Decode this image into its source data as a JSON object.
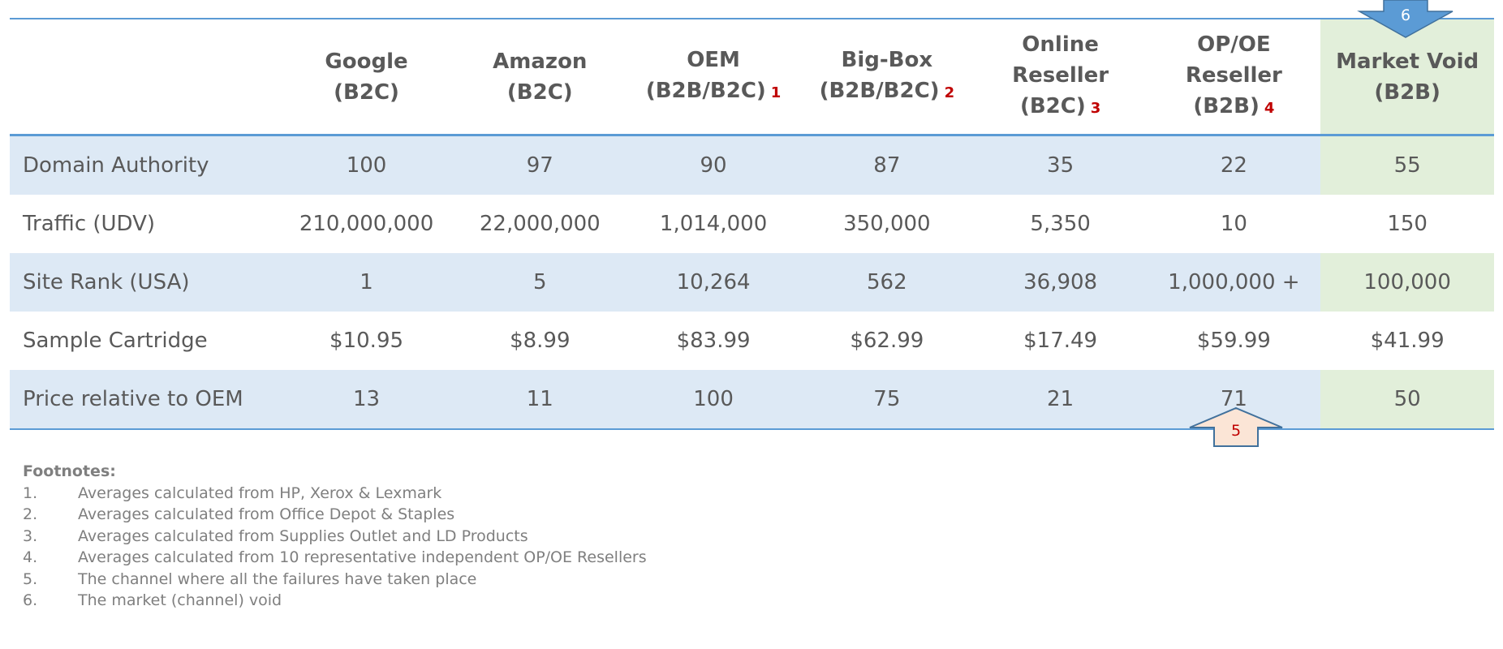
{
  "columns": [
    {
      "line1": "Google",
      "line2": "(B2C)",
      "note": ""
    },
    {
      "line1": "Amazon",
      "line2": "(B2C)",
      "note": ""
    },
    {
      "line1": "OEM",
      "line2": "(B2B/B2C)",
      "note": "1"
    },
    {
      "line1": "Big-Box",
      "line2": "(B2B/B2C)",
      "note": "2"
    },
    {
      "line1": "Online Reseller",
      "line2": "(B2C)",
      "note": "3"
    },
    {
      "line1": "OP/OE Reseller",
      "line2": "(B2B)",
      "note": "4"
    },
    {
      "line1": "Market Void",
      "line2": "(B2B)",
      "note": ""
    }
  ],
  "rows": [
    {
      "label": "Domain Authority",
      "values": [
        "100",
        "97",
        "90",
        "87",
        "35",
        "22",
        "55"
      ]
    },
    {
      "label": "Traffic (UDV)",
      "values": [
        "210,000,000",
        "22,000,000",
        "1,014,000",
        "350,000",
        "5,350",
        "10",
        "150"
      ]
    },
    {
      "label": "Site Rank (USA)",
      "values": [
        "1",
        "5",
        "10,264",
        "562",
        "36,908",
        "1,000,000 +",
        "100,000"
      ]
    },
    {
      "label": "Sample Cartridge",
      "values": [
        "$10.95",
        "$8.99",
        "$83.99",
        "$62.99",
        "$17.49",
        "$59.99",
        "$41.99"
      ]
    },
    {
      "label": "Price relative to OEM",
      "values": [
        "13",
        "11",
        "100",
        "75",
        "21",
        "71",
        "50"
      ]
    }
  ],
  "callouts": {
    "down": "6",
    "up": "5"
  },
  "footnotes": {
    "title": "Footnotes:",
    "items": [
      {
        "num": "1.",
        "text": "Averages calculated from HP, Xerox & Lexmark"
      },
      {
        "num": "2.",
        "text": "Averages calculated from Office Depot & Staples"
      },
      {
        "num": "3.",
        "text": "Averages calculated from Supplies Outlet and LD Products"
      },
      {
        "num": "4.",
        "text": "Averages calculated from 10 representative independent OP/OE Resellers"
      },
      {
        "num": "5.",
        "text": "The channel where all the failures have taken place"
      },
      {
        "num": "6.",
        "text": "The market (channel) void"
      }
    ]
  },
  "colors": {
    "accent": "#5b9bd5",
    "row_alt": "#dde9f5",
    "void": "#e2efda",
    "note": "#c00000"
  }
}
